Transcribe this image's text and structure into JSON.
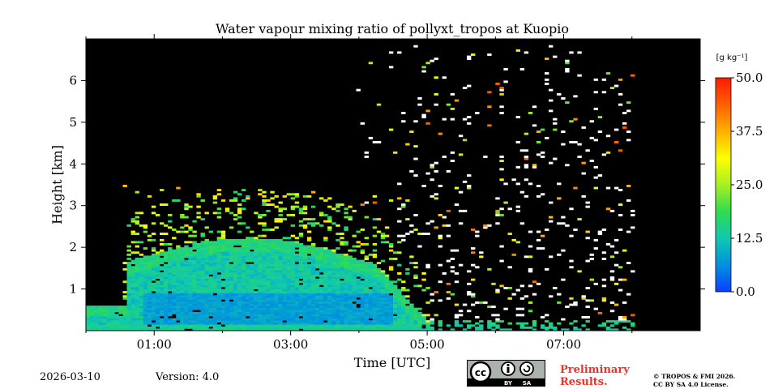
{
  "chart_data": {
    "type": "heatmap",
    "title": "Water vapour mixing ratio of pollyxt_tropos at Kuopio",
    "xlabel": "Time [UTC]",
    "ylabel": "Height [km]",
    "xlim_hours": [
      0,
      9
    ],
    "ylim_km": [
      0,
      7
    ],
    "x_ticks": [
      {
        "value": 1,
        "label": "01:00"
      },
      {
        "value": 3,
        "label": "03:00"
      },
      {
        "value": 5,
        "label": "05:00"
      },
      {
        "value": 7,
        "label": "07:00"
      }
    ],
    "y_ticks": [
      {
        "value": 1,
        "label": "1"
      },
      {
        "value": 2,
        "label": "2"
      },
      {
        "value": 3,
        "label": "3"
      },
      {
        "value": 4,
        "label": "4"
      },
      {
        "value": 5,
        "label": "5"
      },
      {
        "value": 6,
        "label": "6"
      }
    ],
    "measurement_end_hours": 8.0,
    "colorbar": {
      "label": "[g kg⁻¹]",
      "min": 0.0,
      "max": 50.0,
      "ticks": [
        "0.0",
        "12.5",
        "25.0",
        "37.5",
        "50.0"
      ],
      "colors": [
        "#0a3fff",
        "#0090e0",
        "#10c8b0",
        "#30dc50",
        "#a8f020",
        "#ffff00",
        "#ffb000",
        "#ff6000",
        "#ff1a00"
      ]
    },
    "background_color": "#000000",
    "moist_layer": {
      "description_values": [
        {
          "time_start": 0.0,
          "time_end": 5.0,
          "top_km": 1.5,
          "typical_value": 10
        },
        {
          "time_start": 0.6,
          "time_end": 4.5,
          "top_km": 2.3,
          "typical_value": 14
        }
      ]
    }
  },
  "footer": {
    "date": "2026-03-10",
    "version": "Version: 4.0",
    "preliminary_line1": "Preliminary",
    "preliminary_line2": "Results.",
    "license_line1": "© TROPOS & FMI 2026.",
    "license_line2": "CC BY SA 4.0 License.",
    "cc_labels": [
      "cc",
      "BY",
      "SA"
    ]
  }
}
